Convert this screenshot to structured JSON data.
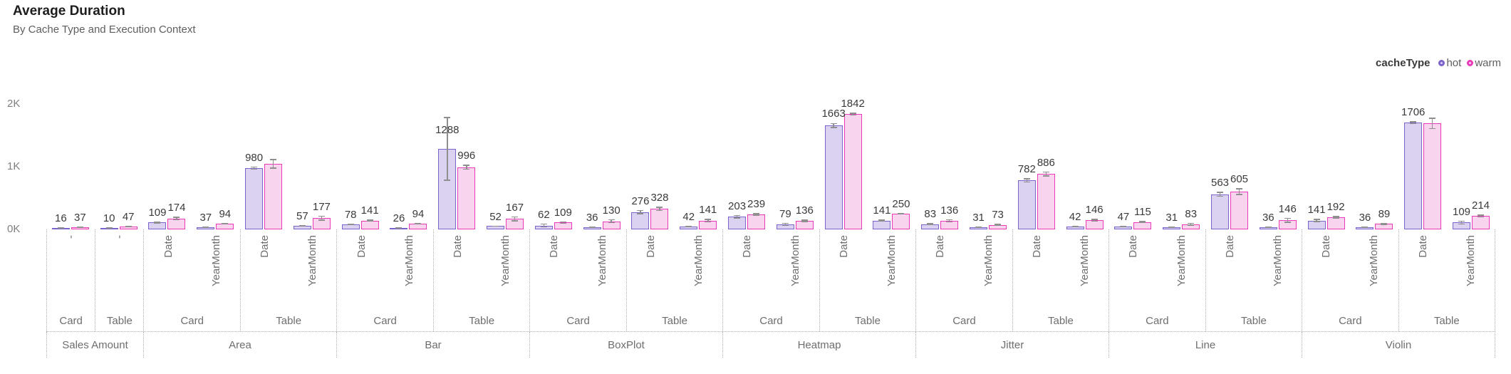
{
  "header": {
    "title": "Average Duration",
    "subtitle": "By Cache Type and Execution Context"
  },
  "legend": {
    "title": "cacheType",
    "items": [
      {
        "label": "hot",
        "ring_color": "#7a63cb",
        "fill_color": "#dbd1f1"
      },
      {
        "label": "warm",
        "ring_color": "#e93ab8",
        "fill_color": "#f9d4ee"
      }
    ]
  },
  "y_axis": {
    "ticks": [
      {
        "label": "0K",
        "value": 0
      },
      {
        "label": "1K",
        "value": 1000
      },
      {
        "label": "2K",
        "value": 2000
      }
    ]
  },
  "chart_data": {
    "type": "bar",
    "title": "Average Duration",
    "subtitle": "By Cache Type and Execution Context",
    "ylabel": "",
    "xlabel": "",
    "ylim": [
      0,
      2650
    ],
    "grid": false,
    "legend_position": "top-right",
    "series_field": "cacheType",
    "series": [
      "hot",
      "warm"
    ],
    "error_bars": true,
    "groups": [
      {
        "category": "Sales Amount",
        "slots": [
          {
            "label": "Card",
            "cells": [
              {
                "context": "-",
                "hot": {
                  "value": 16,
                  "err": 12,
                  "label": "16"
                },
                "warm": {
                  "value": 37,
                  "err": 14,
                  "label": "37"
                }
              }
            ]
          },
          {
            "label": "Table",
            "cells": [
              {
                "context": "-",
                "hot": {
                  "value": 10,
                  "err": 8,
                  "label": "10"
                },
                "warm": {
                  "value": 47,
                  "err": 10,
                  "label": "47"
                }
              }
            ]
          }
        ]
      },
      {
        "category": "Area",
        "slots": [
          {
            "label": "Card",
            "cells": [
              {
                "context": "Date",
                "hot": {
                  "value": 109,
                  "err": 15,
                  "label": "109"
                },
                "warm": {
                  "value": 174,
                  "err": 30,
                  "label": "174"
                }
              },
              {
                "context": "YearMonth",
                "hot": {
                  "value": 37,
                  "err": 10,
                  "label": "37"
                },
                "warm": {
                  "value": 94,
                  "err": 12,
                  "label": "94"
                }
              }
            ]
          },
          {
            "label": "Table",
            "cells": [
              {
                "context": "Date",
                "hot": {
                  "value": 980,
                  "err": 25,
                  "label": "980"
                },
                "warm": {
                  "value": 1048,
                  "err": 75,
                  "label": ""
                }
              },
              {
                "context": "YearMonth",
                "hot": {
                  "value": 57,
                  "err": 12,
                  "label": "57"
                },
                "warm": {
                  "value": 177,
                  "err": 40,
                  "label": "177"
                }
              }
            ]
          }
        ]
      },
      {
        "category": "Bar",
        "slots": [
          {
            "label": "Card",
            "cells": [
              {
                "context": "Date",
                "hot": {
                  "value": 78,
                  "err": 14,
                  "label": "78"
                },
                "warm": {
                  "value": 141,
                  "err": 18,
                  "label": "141"
                }
              },
              {
                "context": "YearMonth",
                "hot": {
                  "value": 26,
                  "err": 10,
                  "label": "26"
                },
                "warm": {
                  "value": 94,
                  "err": 12,
                  "label": "94"
                }
              }
            ]
          },
          {
            "label": "Table",
            "cells": [
              {
                "context": "Date",
                "hot": {
                  "value": 1288,
                  "err": 510,
                  "label": "1288"
                },
                "warm": {
                  "value": 996,
                  "err": 40,
                  "label": "996"
                }
              },
              {
                "context": "YearMonth",
                "hot": {
                  "value": 52,
                  "err": 10,
                  "label": "52"
                },
                "warm": {
                  "value": 167,
                  "err": 40,
                  "label": "167"
                }
              }
            ]
          }
        ]
      },
      {
        "category": "BoxPlot",
        "slots": [
          {
            "label": "Card",
            "cells": [
              {
                "context": "Date",
                "hot": {
                  "value": 62,
                  "err": 30,
                  "label": "62"
                },
                "warm": {
                  "value": 109,
                  "err": 20,
                  "label": "109"
                }
              },
              {
                "context": "YearMonth",
                "hot": {
                  "value": 36,
                  "err": 10,
                  "label": "36"
                },
                "warm": {
                  "value": 130,
                  "err": 30,
                  "label": "130"
                }
              }
            ]
          },
          {
            "label": "Table",
            "cells": [
              {
                "context": "Date",
                "hot": {
                  "value": 276,
                  "err": 35,
                  "label": "276"
                },
                "warm": {
                  "value": 328,
                  "err": 35,
                  "label": "328"
                }
              },
              {
                "context": "YearMonth",
                "hot": {
                  "value": 42,
                  "err": 12,
                  "label": "42"
                },
                "warm": {
                  "value": 141,
                  "err": 28,
                  "label": "141"
                }
              }
            ]
          }
        ]
      },
      {
        "category": "Heatmap",
        "slots": [
          {
            "label": "Card",
            "cells": [
              {
                "context": "Date",
                "hot": {
                  "value": 203,
                  "err": 30,
                  "label": "203"
                },
                "warm": {
                  "value": 239,
                  "err": 18,
                  "label": "239"
                }
              },
              {
                "context": "YearMonth",
                "hot": {
                  "value": 79,
                  "err": 25,
                  "label": "79"
                },
                "warm": {
                  "value": 136,
                  "err": 18,
                  "label": "136"
                }
              }
            ]
          },
          {
            "label": "Table",
            "cells": [
              {
                "context": "Date",
                "hot": {
                  "value": 1663,
                  "err": 40,
                  "label": "1663"
                },
                "warm": {
                  "value": 1842,
                  "err": 25,
                  "label": "1842"
                }
              },
              {
                "context": "YearMonth",
                "hot": {
                  "value": 141,
                  "err": 15,
                  "label": "141"
                },
                "warm": {
                  "value": 250,
                  "err": 15,
                  "label": "250"
                }
              }
            ]
          }
        ]
      },
      {
        "category": "Jitter",
        "slots": [
          {
            "label": "Card",
            "cells": [
              {
                "context": "Date",
                "hot": {
                  "value": 83,
                  "err": 18,
                  "label": "83"
                },
                "warm": {
                  "value": 136,
                  "err": 25,
                  "label": "136"
                }
              },
              {
                "context": "YearMonth",
                "hot": {
                  "value": 31,
                  "err": 10,
                  "label": "31"
                },
                "warm": {
                  "value": 73,
                  "err": 14,
                  "label": "73"
                }
              }
            ]
          },
          {
            "label": "Table",
            "cells": [
              {
                "context": "Date",
                "hot": {
                  "value": 782,
                  "err": 35,
                  "label": "782"
                },
                "warm": {
                  "value": 886,
                  "err": 40,
                  "label": "886"
                }
              },
              {
                "context": "YearMonth",
                "hot": {
                  "value": 42,
                  "err": 10,
                  "label": "42"
                },
                "warm": {
                  "value": 146,
                  "err": 25,
                  "label": "146"
                }
              }
            ]
          }
        ]
      },
      {
        "category": "Line",
        "slots": [
          {
            "label": "Card",
            "cells": [
              {
                "context": "Date",
                "hot": {
                  "value": 47,
                  "err": 14,
                  "label": "47"
                },
                "warm": {
                  "value": 115,
                  "err": 18,
                  "label": "115"
                }
              },
              {
                "context": "YearMonth",
                "hot": {
                  "value": 31,
                  "err": 10,
                  "label": "31"
                },
                "warm": {
                  "value": 83,
                  "err": 25,
                  "label": "83"
                }
              }
            ]
          },
          {
            "label": "Table",
            "cells": [
              {
                "context": "Date",
                "hot": {
                  "value": 563,
                  "err": 40,
                  "label": "563"
                },
                "warm": {
                  "value": 605,
                  "err": 55,
                  "label": "605"
                }
              },
              {
                "context": "YearMonth",
                "hot": {
                  "value": 36,
                  "err": 10,
                  "label": "36"
                },
                "warm": {
                  "value": 146,
                  "err": 40,
                  "label": "146"
                }
              }
            ]
          }
        ]
      },
      {
        "category": "Violin",
        "slots": [
          {
            "label": "Card",
            "cells": [
              {
                "context": "Date",
                "hot": {
                  "value": 141,
                  "err": 25,
                  "label": "141"
                },
                "warm": {
                  "value": 192,
                  "err": 20,
                  "label": "192"
                }
              },
              {
                "context": "YearMonth",
                "hot": {
                  "value": 36,
                  "err": 10,
                  "label": "36"
                },
                "warm": {
                  "value": 89,
                  "err": 15,
                  "label": "89"
                }
              }
            ]
          },
          {
            "label": "Table",
            "cells": [
              {
                "context": "Date",
                "hot": {
                  "value": 1706,
                  "err": 25,
                  "label": "1706"
                },
                "warm": {
                  "value": 1695,
                  "err": 90,
                  "label": ""
                }
              },
              {
                "context": "YearMonth",
                "hot": {
                  "value": 109,
                  "err": 30,
                  "label": "109"
                },
                "warm": {
                  "value": 214,
                  "err": 25,
                  "label": "214"
                }
              }
            ]
          }
        ]
      }
    ]
  }
}
